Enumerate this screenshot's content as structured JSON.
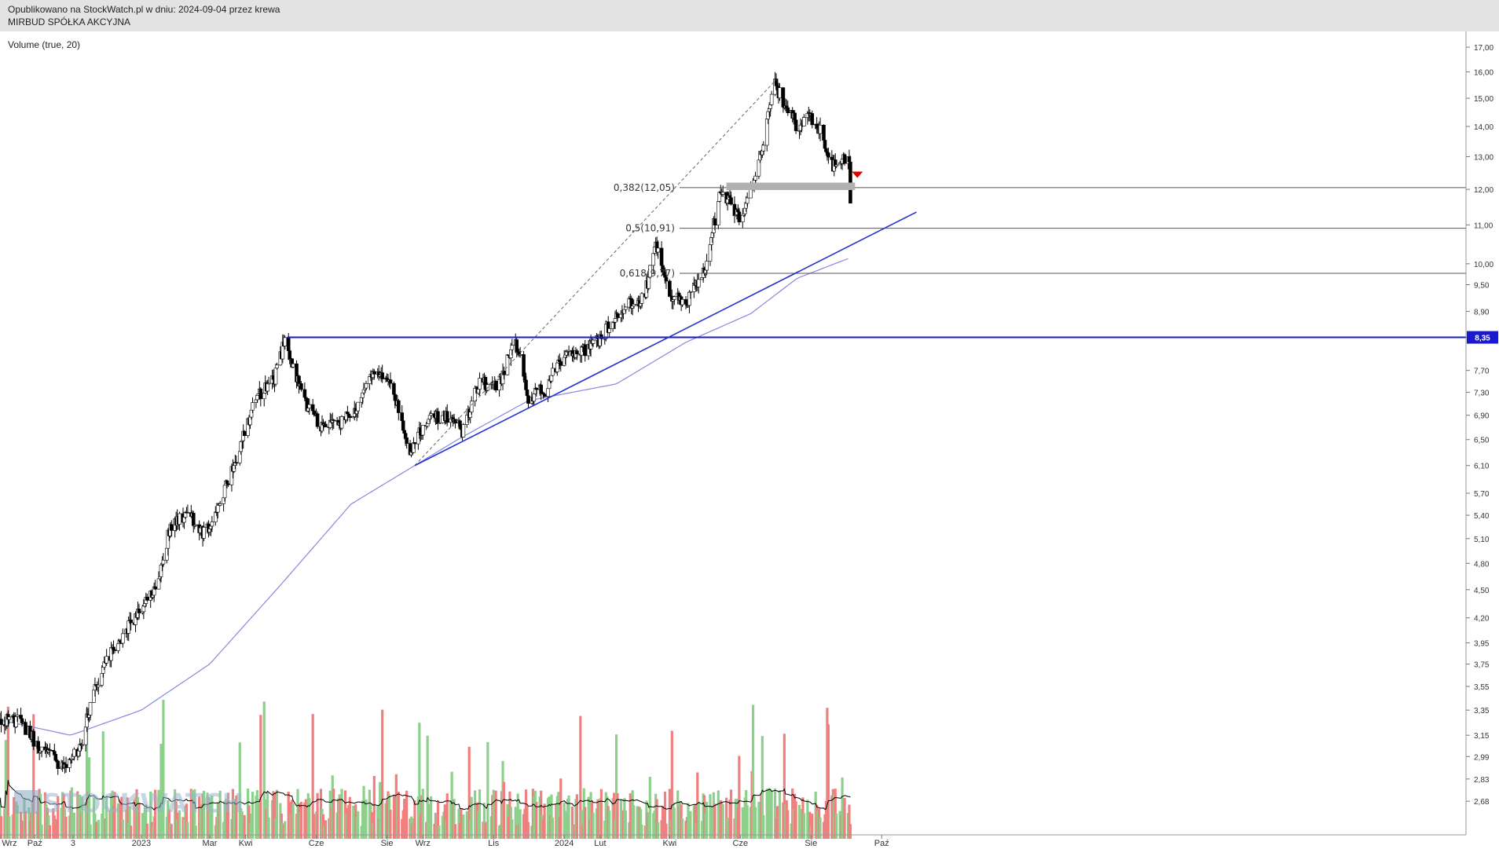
{
  "header": {
    "line1": "Opublikowano na StockWatch.pl w dniu: 2024-09-04 przez krewa",
    "line2": "MIRBUD SPÓŁKA AKCYJNA"
  },
  "indicator_label": "Volume (true, 20)",
  "logo_text": "STOCKWATCH",
  "colors": {
    "up": "#8cd08c",
    "down": "#f08080",
    "candle_outline": "#000000",
    "sma": "#8888e0",
    "trendline": "#2233cc",
    "resistance": "#1a1acc",
    "price_badge_bg": "#1a1acc",
    "fib": "#555555",
    "zone": "#b0b0b0",
    "marker": "#dd0000"
  },
  "chart_data": {
    "type": "candlestick",
    "y_scale": "log",
    "ylim": [
      2.55,
      17.4
    ],
    "y_ticks": [
      "17,00",
      "16,00",
      "15,00",
      "14,00",
      "13,00",
      "12,00",
      "11,00",
      "10,00",
      "9,50",
      "8,90",
      "8,35",
      "7,70",
      "7,30",
      "6,90",
      "6,50",
      "6,10",
      "5,70",
      "5,40",
      "5,10",
      "4,80",
      "4,50",
      "4,20",
      "3,95",
      "3,75",
      "3,55",
      "3,35",
      "3,15",
      "2,99",
      "2,83",
      "2,68"
    ],
    "x_labels": [
      "Wrz",
      "Paź",
      "3",
      "2023",
      "Mar",
      "Kwi",
      "Cze",
      "Sie",
      "Wrz",
      "Lis",
      "2024",
      "Lut",
      "Kwi",
      "Cze",
      "Sie",
      "Paź"
    ],
    "start_date": "2022-09-01",
    "price_waypoints": [
      [
        "2022-09-01",
        3.27
      ],
      [
        "2022-09-20",
        3.25
      ],
      [
        "2022-10-05",
        3.05
      ],
      [
        "2022-10-25",
        2.93
      ],
      [
        "2022-11-10",
        3.05
      ],
      [
        "2022-11-20",
        3.5
      ],
      [
        "2022-12-05",
        3.85
      ],
      [
        "2022-12-20",
        4.1
      ],
      [
        "2023-01-05",
        4.35
      ],
      [
        "2023-01-15",
        4.5
      ],
      [
        "2023-01-25",
        5.2
      ],
      [
        "2023-02-10",
        5.45
      ],
      [
        "2023-02-25",
        5.15
      ],
      [
        "2023-03-10",
        5.55
      ],
      [
        "2023-03-25",
        6.3
      ],
      [
        "2023-04-10",
        7.2
      ],
      [
        "2023-04-25",
        7.5
      ],
      [
        "2023-05-05",
        8.3
      ],
      [
        "2023-05-20",
        7.2
      ],
      [
        "2023-06-05",
        6.7
      ],
      [
        "2023-06-20",
        6.75
      ],
      [
        "2023-07-05",
        7.0
      ],
      [
        "2023-07-20",
        7.7
      ],
      [
        "2023-08-05",
        7.5
      ],
      [
        "2023-08-20",
        6.3
      ],
      [
        "2023-09-05",
        6.8
      ],
      [
        "2023-09-20",
        6.9
      ],
      [
        "2023-10-05",
        6.65
      ],
      [
        "2023-10-20",
        7.5
      ],
      [
        "2023-11-05",
        7.4
      ],
      [
        "2023-11-20",
        8.3
      ],
      [
        "2023-12-01",
        7.2
      ],
      [
        "2023-12-15",
        7.35
      ],
      [
        "2024-01-01",
        8.0
      ],
      [
        "2024-01-15",
        8.05
      ],
      [
        "2024-01-31",
        8.3
      ],
      [
        "2024-02-20",
        9.0
      ],
      [
        "2024-03-10",
        9.2
      ],
      [
        "2024-03-20",
        10.5
      ],
      [
        "2024-04-01",
        9.3
      ],
      [
        "2024-04-15",
        9.1
      ],
      [
        "2024-05-01",
        9.8
      ],
      [
        "2024-05-15",
        12.0
      ],
      [
        "2024-06-01",
        11.2
      ],
      [
        "2024-06-15",
        12.5
      ],
      [
        "2024-07-01",
        15.5
      ],
      [
        "2024-07-20",
        14.0
      ],
      [
        "2024-08-01",
        14.3
      ],
      [
        "2024-08-10",
        13.8
      ],
      [
        "2024-08-20",
        12.6
      ],
      [
        "2024-08-25",
        13.0
      ],
      [
        "2024-09-03",
        12.8
      ],
      [
        "2024-09-04",
        11.6
      ]
    ],
    "sma_series": {
      "name": "SMA",
      "points": [
        [
          "2022-09-01",
          3.27
        ],
        [
          "2022-11-01",
          3.15
        ],
        [
          "2023-01-01",
          3.35
        ],
        [
          "2023-03-01",
          3.75
        ],
        [
          "2023-05-01",
          4.55
        ],
        [
          "2023-07-01",
          5.55
        ],
        [
          "2023-08-25",
          6.1
        ],
        [
          "2023-10-01",
          6.5
        ],
        [
          "2023-12-01",
          7.15
        ],
        [
          "2024-02-15",
          7.45
        ],
        [
          "2024-04-15",
          8.25
        ],
        [
          "2024-06-10",
          8.85
        ],
        [
          "2024-07-20",
          9.65
        ],
        [
          "2024-09-04",
          10.15
        ]
      ]
    },
    "volume_max": 50000,
    "events": {
      "fib_top": [
        "2024-07-02",
        15.7
      ],
      "fib_bottom": [
        "2023-08-25",
        6.1
      ],
      "trendline_from": [
        "2023-08-25",
        6.1
      ],
      "trendline_to": [
        "2024-10-31",
        11.35
      ],
      "resistance_from": "2023-05-07",
      "zone_from": "2024-05-20",
      "zone_to": "2024-09-08",
      "marker_at": "2024-09-10"
    },
    "annotations": {
      "fib_levels": [
        {
          "label": "0,382(12,05)",
          "value": 12.05
        },
        {
          "label": "0,5(10,91)",
          "value": 10.91
        },
        {
          "label": "0,618(9,77)",
          "value": 9.77
        }
      ],
      "resistance": {
        "label": "8,35",
        "value": 8.35
      },
      "support_zone": {
        "from": 11.98,
        "to": 12.2
      }
    }
  }
}
